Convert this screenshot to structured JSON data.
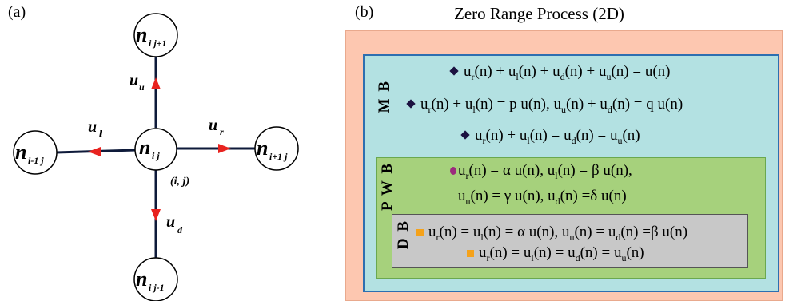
{
  "panel_a": {
    "label": "(a)",
    "nodes": {
      "center": {
        "main": "n",
        "sub": "i j"
      },
      "top": {
        "main": "n",
        "sub": "i j+1"
      },
      "bottom": {
        "main": "n",
        "sub": "i j-1"
      },
      "left": {
        "main": "n",
        "sub": "i-1 j"
      },
      "right": {
        "main": "n",
        "sub": "i+1 j"
      }
    },
    "rates": {
      "up": {
        "main": "u",
        "sub": "u"
      },
      "left": {
        "main": "u",
        "sub": "l"
      },
      "right": {
        "main": "u",
        "sub": "r"
      },
      "down": {
        "main": "u",
        "sub": "d"
      }
    },
    "coordinate": "(i, j)",
    "colors": {
      "arrow": "#e8231f",
      "edge": "#0e1a3a"
    }
  },
  "panel_b": {
    "label": "(b)",
    "title": "Zero Range Process  (2D)",
    "colors": {
      "outer": "#fdc7b0",
      "mb": "#b3e1e2",
      "mb_border": "#2d6fb0",
      "pwb": "#a6d17c",
      "pwb_border": "#6aa84f",
      "db": "#c8c8c8",
      "db_border": "#555555"
    },
    "mb": {
      "label": "M B",
      "eq1": [
        [
          "u",
          "r"
        ],
        "(n) + u",
        [
          "",
          "l"
        ],
        "(n) + u",
        [
          "",
          "d"
        ],
        "(n) + u",
        [
          "",
          "u"
        ],
        "(n) = u(n)"
      ],
      "eq1_text": {
        "a": "u",
        "a_sub": "r",
        "b": "(n) + u",
        "b_sub": "l",
        "c": "(n) + u",
        "c_sub": "d",
        "d": "(n) + u",
        "d_sub": "u",
        "e": "(n) = u(n)"
      },
      "eq2_text": {
        "a": "u",
        "a_sub": "r",
        "b": "(n) + u",
        "b_sub": "l",
        "c": "(n) =  p u(n), u",
        "c_sub": "u",
        "d": "(n) + u",
        "d_sub": "d",
        "e": "(n) = q u(n)"
      },
      "eq3_text": {
        "a": "u",
        "a_sub": "r",
        "b": "(n) + u",
        "b_sub": "l",
        "c": "(n) = u",
        "c_sub": "d",
        "d": "(n) = u",
        "d_sub": "u",
        "e": "(n)"
      }
    },
    "pwb": {
      "label": "P W B",
      "eq1_text": {
        "a": "u",
        "a_sub": "r",
        "b": "(n) = α u(n), u",
        "b_sub": "l",
        "c": "(n) = β u(n),"
      },
      "eq2_text": {
        "a": "u",
        "a_sub": "u",
        "b": "(n) = γ u(n), u",
        "b_sub": "d",
        "c": "(n) =δ u(n)"
      }
    },
    "db": {
      "label": "D B",
      "eq1_text": {
        "a": "u",
        "a_sub": "r",
        "b": "(n) = u",
        "b_sub": "l",
        "c": "(n) =  α u(n), u",
        "c_sub": "u",
        "d": "(n) = u",
        "d_sub": "d",
        "e": "(n) =β u(n)"
      },
      "eq2_text": {
        "a": "u",
        "a_sub": "r",
        "b": "(n) = u",
        "b_sub": "l",
        "c": "(n) = u",
        "c_sub": "d",
        "d": "(n) = u",
        "d_sub": "u",
        "e": "(n)"
      }
    }
  }
}
